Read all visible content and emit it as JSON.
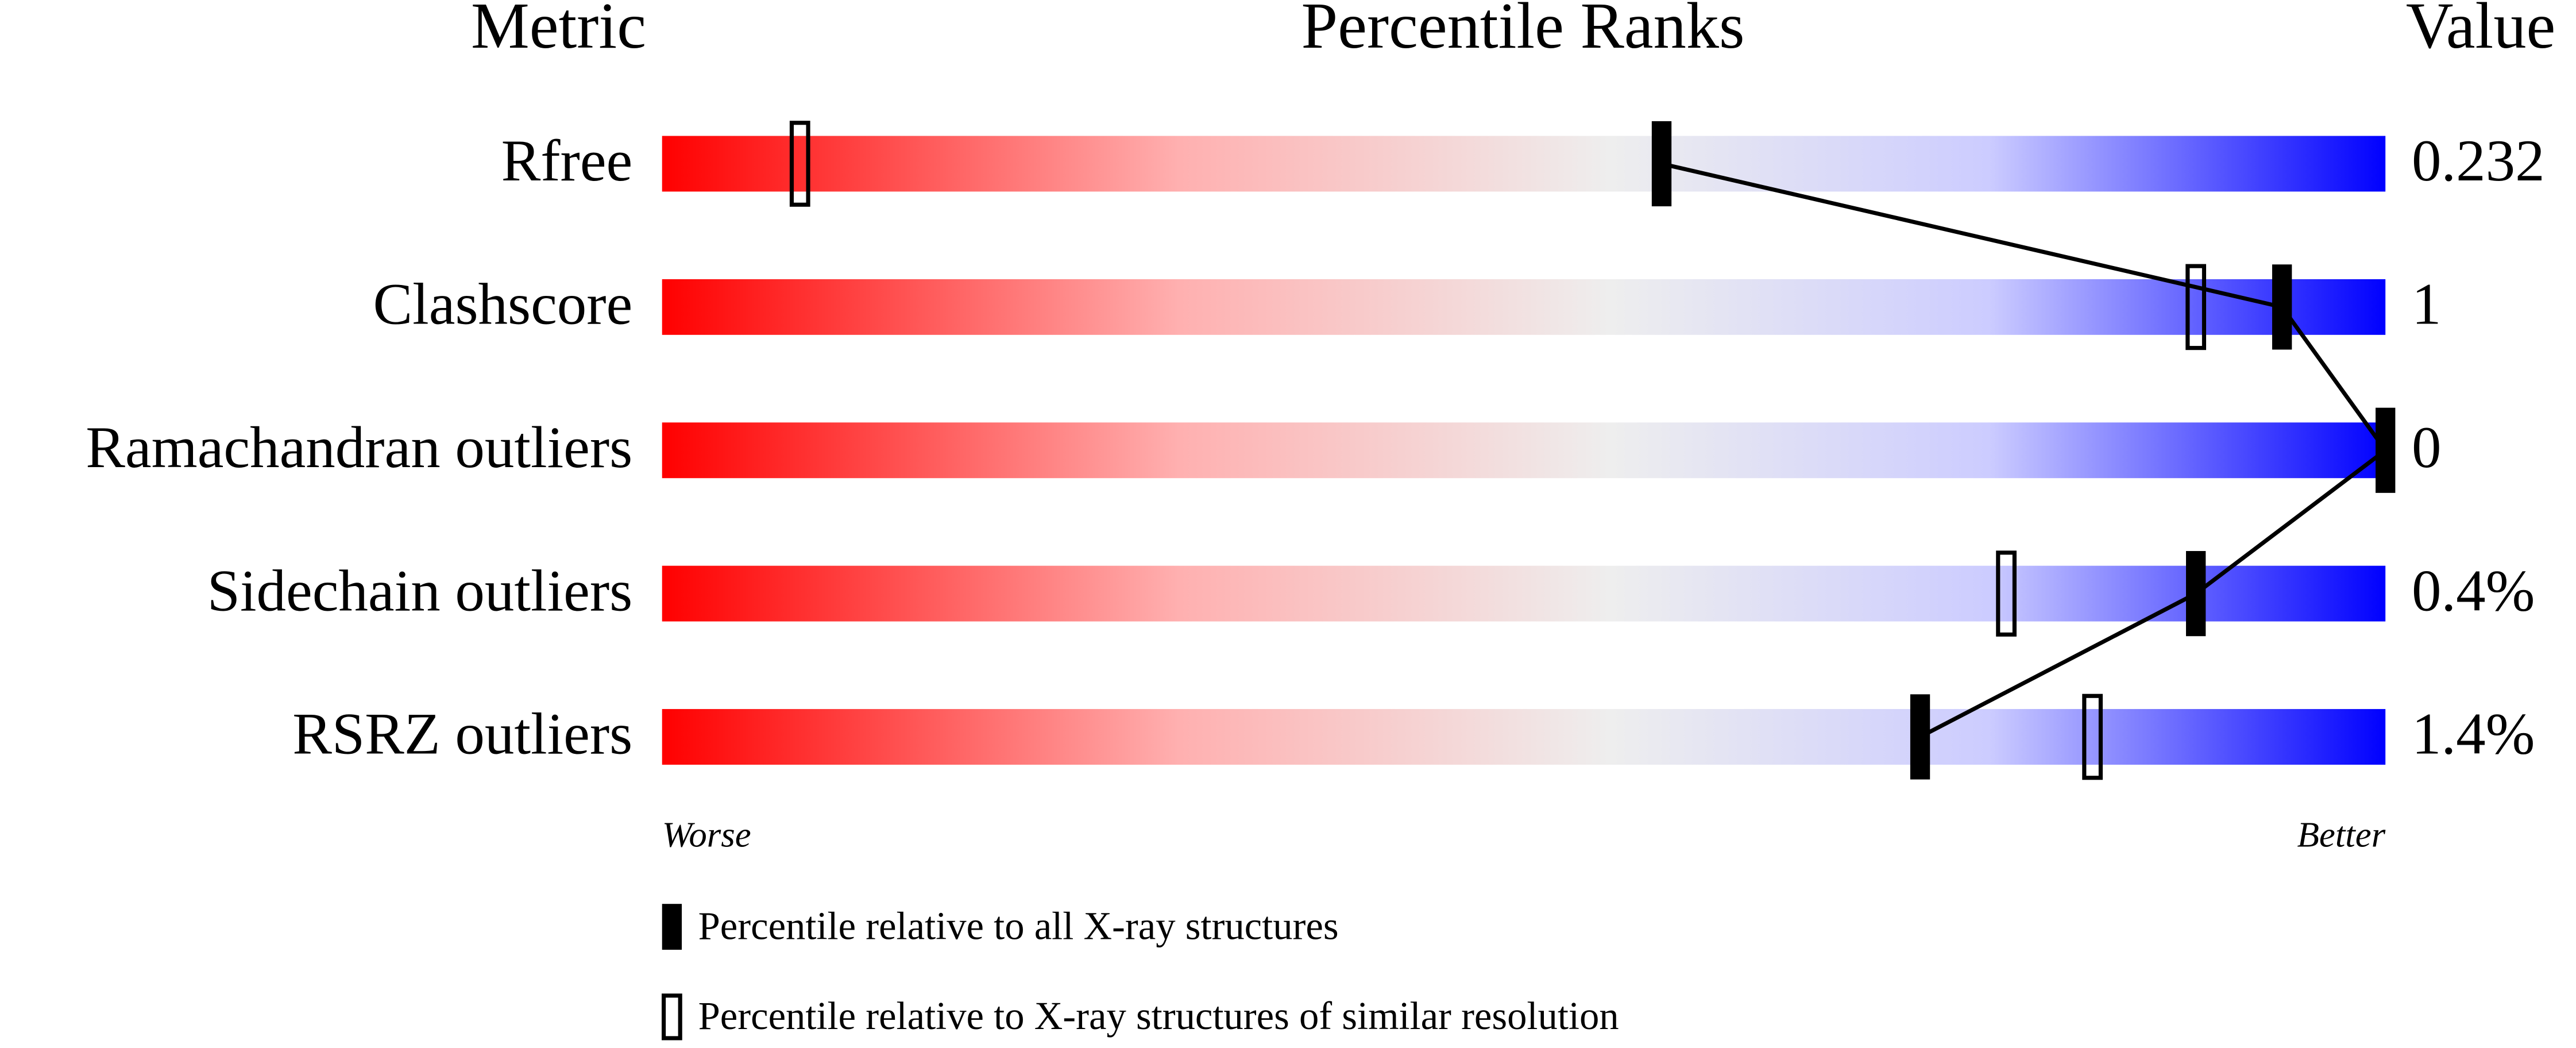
{
  "chart_data": {
    "type": "percentile-slider",
    "headers": [
      "Metric",
      "Percentile Ranks",
      "Value"
    ],
    "categories": [
      "Rfree",
      "Clashscore",
      "Ramachandran outliers",
      "Sidechain outliers",
      "RSRZ outliers"
    ],
    "metric_values": [
      "0.232",
      "1",
      "0",
      "0.4%",
      "1.4%"
    ],
    "xlim": [
      0,
      100
    ],
    "end_labels": [
      "Worse",
      "Better"
    ],
    "series": [
      {
        "name": "Percentile relative to all X-ray structures",
        "color": "#000000",
        "style": "filled",
        "values": [
          58,
          94,
          100,
          89,
          73
        ]
      },
      {
        "name": "Percentile relative to X-ray structures of similar resolution",
        "color": "#000000",
        "style": "hollow",
        "values": [
          8,
          89,
          null,
          78,
          83
        ]
      }
    ]
  }
}
